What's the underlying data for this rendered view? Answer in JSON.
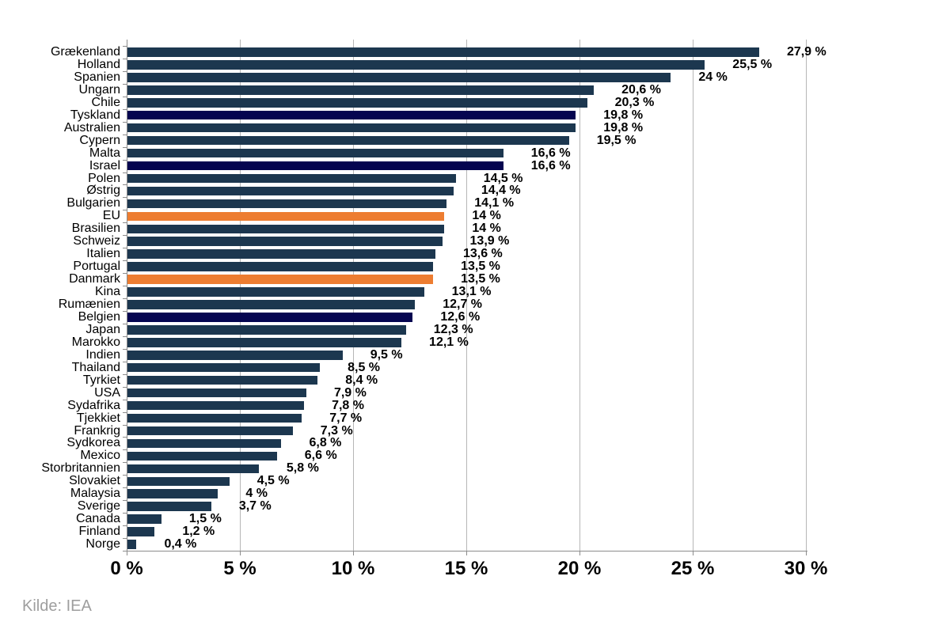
{
  "chart_data": {
    "type": "bar",
    "orientation": "horizontal",
    "title": "",
    "xlabel": "",
    "ylabel": "",
    "xlim": [
      0,
      30
    ],
    "grid": true,
    "legend": false,
    "x_ticks": [
      {
        "value": 0,
        "label": "0 %"
      },
      {
        "value": 5,
        "label": "5 %"
      },
      {
        "value": 10,
        "label": "10 %"
      },
      {
        "value": 15,
        "label": "15 %"
      },
      {
        "value": 20,
        "label": "20 %"
      },
      {
        "value": 25,
        "label": "25 %"
      },
      {
        "value": 30,
        "label": "30 %"
      }
    ],
    "colors": {
      "default": "#1C374F",
      "navy": "#050550",
      "orange": "#ED7D31"
    },
    "bars": [
      {
        "label": "Grækenland",
        "value": 27.9,
        "display": "27,9 %",
        "color": "default"
      },
      {
        "label": "Holland",
        "value": 25.5,
        "display": "25,5 %",
        "color": "default"
      },
      {
        "label": "Spanien",
        "value": 24,
        "display": "24 %",
        "color": "default"
      },
      {
        "label": "Ungarn",
        "value": 20.6,
        "display": "20,6 %",
        "color": "default"
      },
      {
        "label": "Chile",
        "value": 20.3,
        "display": "20,3 %",
        "color": "default"
      },
      {
        "label": "Tyskland",
        "value": 19.8,
        "display": "19,8 %",
        "color": "navy"
      },
      {
        "label": "Australien",
        "value": 19.8,
        "display": "19,8 %",
        "color": "default"
      },
      {
        "label": "Cypern",
        "value": 19.5,
        "display": "19,5 %",
        "color": "default"
      },
      {
        "label": "Malta",
        "value": 16.6,
        "display": "16,6 %",
        "color": "default"
      },
      {
        "label": "Israel",
        "value": 16.6,
        "display": "16,6 %",
        "color": "navy"
      },
      {
        "label": "Polen",
        "value": 14.5,
        "display": "14,5 %",
        "color": "default"
      },
      {
        "label": "Østrig",
        "value": 14.4,
        "display": "14,4 %",
        "color": "default"
      },
      {
        "label": "Bulgarien",
        "value": 14.1,
        "display": "14,1 %",
        "color": "default"
      },
      {
        "label": "EU",
        "value": 14,
        "display": "14 %",
        "color": "orange"
      },
      {
        "label": "Brasilien",
        "value": 14,
        "display": "14 %",
        "color": "default"
      },
      {
        "label": "Schweiz",
        "value": 13.9,
        "display": "13,9 %",
        "color": "default"
      },
      {
        "label": "Italien",
        "value": 13.6,
        "display": "13,6 %",
        "color": "default"
      },
      {
        "label": "Portugal",
        "value": 13.5,
        "display": "13,5 %",
        "color": "default"
      },
      {
        "label": "Danmark",
        "value": 13.5,
        "display": "13,5 %",
        "color": "orange"
      },
      {
        "label": "Kina",
        "value": 13.1,
        "display": "13,1 %",
        "color": "default"
      },
      {
        "label": "Rumænien",
        "value": 12.7,
        "display": "12,7 %",
        "color": "default"
      },
      {
        "label": "Belgien",
        "value": 12.6,
        "display": "12,6 %",
        "color": "navy"
      },
      {
        "label": "Japan",
        "value": 12.3,
        "display": "12,3 %",
        "color": "default"
      },
      {
        "label": "Marokko",
        "value": 12.1,
        "display": "12,1 %",
        "color": "default"
      },
      {
        "label": "Indien",
        "value": 9.5,
        "display": "9,5 %",
        "color": "default"
      },
      {
        "label": "Thailand",
        "value": 8.5,
        "display": "8,5 %",
        "color": "default"
      },
      {
        "label": "Tyrkiet",
        "value": 8.4,
        "display": "8,4 %",
        "color": "default"
      },
      {
        "label": "USA",
        "value": 7.9,
        "display": "7,9 %",
        "color": "default"
      },
      {
        "label": "Sydafrika",
        "value": 7.8,
        "display": "7,8 %",
        "color": "default"
      },
      {
        "label": "Tjekkiet",
        "value": 7.7,
        "display": "7,7 %",
        "color": "default"
      },
      {
        "label": "Frankrig",
        "value": 7.3,
        "display": "7,3 %",
        "color": "default"
      },
      {
        "label": "Sydkorea",
        "value": 6.8,
        "display": "6,8 %",
        "color": "default"
      },
      {
        "label": "Mexico",
        "value": 6.6,
        "display": "6,6 %",
        "color": "default"
      },
      {
        "label": "Storbritannien",
        "value": 5.8,
        "display": "5,8 %",
        "color": "default"
      },
      {
        "label": "Slovakiet",
        "value": 4.5,
        "display": "4,5 %",
        "color": "default"
      },
      {
        "label": "Malaysia",
        "value": 4,
        "display": "4 %",
        "color": "default"
      },
      {
        "label": "Sverige",
        "value": 3.7,
        "display": "3,7 %",
        "color": "default"
      },
      {
        "label": "Canada",
        "value": 1.5,
        "display": "1,5 %",
        "color": "default"
      },
      {
        "label": "Finland",
        "value": 1.2,
        "display": "1,2 %",
        "color": "default"
      },
      {
        "label": "Norge",
        "value": 0.4,
        "display": "0,4 %",
        "color": "default"
      }
    ]
  },
  "source": {
    "label": "Kilde: IEA"
  }
}
